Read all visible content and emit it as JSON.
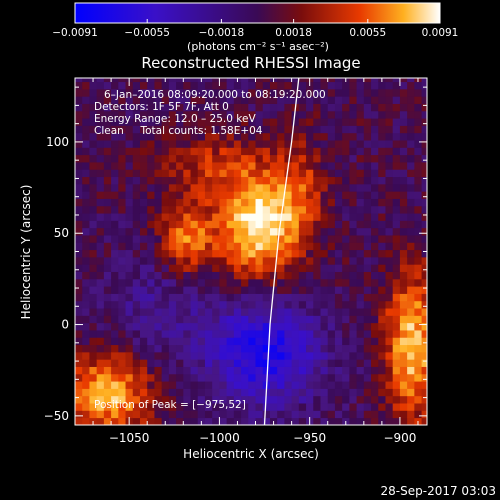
{
  "chart_data": {
    "type": "heatmap",
    "title": "Reconstructed RHESSI Image",
    "xlabel": "Heliocentric X (arcsec)",
    "ylabel": "Heliocentric Y (arcsec)",
    "xlim": [
      -1080,
      -885
    ],
    "ylim": [
      -55,
      135
    ],
    "x_ticks": [
      -1050,
      -1000,
      -950,
      -900
    ],
    "x_tick_labels": [
      "−1050",
      "−1000",
      "−950",
      "−900"
    ],
    "y_ticks": [
      -50,
      0,
      50,
      100
    ],
    "y_tick_labels": [
      "−50",
      "0",
      "50",
      "100"
    ],
    "colorbar": {
      "ticks": [
        -0.0091,
        -0.0055,
        -0.0018,
        0.0018,
        0.0055,
        0.0091
      ],
      "tick_labels": [
        "−0.0091",
        "−0.0055",
        "−0.0018",
        "0.0018",
        "0.0055",
        "0.0091"
      ],
      "min": -0.0091,
      "max": 0.0091,
      "units_label": "(photons cm⁻² s⁻¹ asec⁻²)"
    },
    "annotations": [
      "6–Jan–2016 08:09:20.000 to 08:19:20.000",
      "Detectors: 1F 5F 7F, Att 0",
      "Energy Range: 12.0 – 25.0 keV",
      "Clean     Total counts: 1.58E+04"
    ],
    "peak_label": "Position of Peak = [−975,52]",
    "peak": [
      -975,
      52
    ],
    "limb_curve": [
      [
        -975,
        -55
      ],
      [
        -972,
        0
      ],
      [
        -967,
        50
      ],
      [
        -960,
        100
      ],
      [
        -956,
        135
      ]
    ],
    "sources": [
      {
        "x": -978,
        "y": 55,
        "amp": 1.0,
        "sx": 16,
        "sy": 20
      },
      {
        "x": -1018,
        "y": 48,
        "amp": 0.65,
        "sx": 10,
        "sy": 14
      },
      {
        "x": -955,
        "y": 75,
        "amp": 0.35,
        "sx": 10,
        "sy": 20
      },
      {
        "x": -1005,
        "y": 88,
        "amp": 0.35,
        "sx": 22,
        "sy": 12
      },
      {
        "x": -893,
        "y": -12,
        "amp": 0.85,
        "sx": 11,
        "sy": 28
      },
      {
        "x": -1062,
        "y": -38,
        "amp": 0.8,
        "sx": 17,
        "sy": 16
      },
      {
        "x": -975,
        "y": -15,
        "amp": -0.8,
        "sx": 22,
        "sy": 20
      },
      {
        "x": -1035,
        "y": 8,
        "amp": -0.25,
        "sx": 20,
        "sy": 20
      }
    ]
  },
  "footer_date": "28-Sep-2017 03:03"
}
